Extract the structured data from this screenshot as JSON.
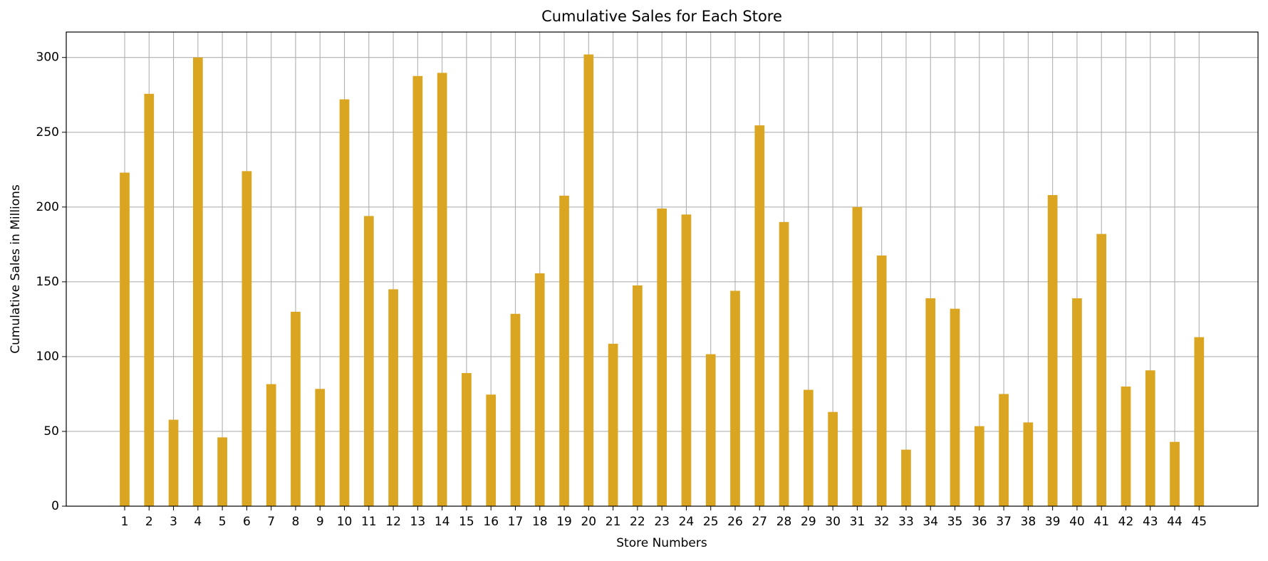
{
  "chart_data": {
    "type": "bar",
    "title": "Cumulative Sales for Each Store",
    "xlabel": "Store Numbers",
    "ylabel": "Cumulative Sales in Millions",
    "categories": [
      "1",
      "2",
      "3",
      "4",
      "5",
      "6",
      "7",
      "8",
      "9",
      "10",
      "11",
      "12",
      "13",
      "14",
      "15",
      "16",
      "17",
      "18",
      "19",
      "20",
      "21",
      "22",
      "23",
      "24",
      "25",
      "26",
      "27",
      "28",
      "29",
      "30",
      "31",
      "32",
      "33",
      "34",
      "35",
      "36",
      "37",
      "38",
      "39",
      "40",
      "41",
      "42",
      "43",
      "44",
      "45"
    ],
    "values": [
      223,
      275.7,
      57.8,
      300,
      46,
      224,
      81.6,
      130,
      78.4,
      272,
      194,
      145,
      287.6,
      289.7,
      89,
      74.6,
      128.6,
      155.7,
      207.6,
      302,
      108.6,
      147.6,
      199,
      195,
      101.6,
      144,
      254.6,
      190,
      77.8,
      63,
      200,
      167.6,
      37.8,
      139,
      132,
      53.5,
      75,
      56,
      208,
      139,
      182,
      80,
      90.8,
      43,
      113
    ],
    "color": "#daa520",
    "ylim": [
      0,
      317
    ],
    "yticks": [
      0,
      50,
      100,
      150,
      200,
      250,
      300
    ],
    "grid": true
  }
}
